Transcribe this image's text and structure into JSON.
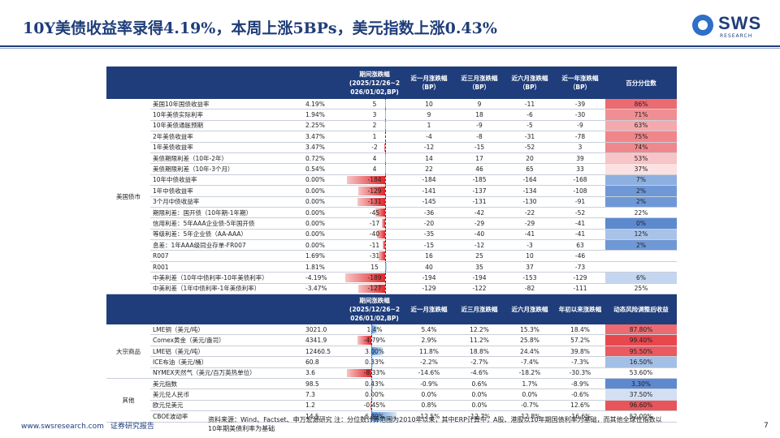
{
  "title": "10Y美债收益率录得4.19%，本周上涨5BPs，美元指数上涨0.43%",
  "logo": {
    "text": "SWS",
    "sub": "RESEARCH"
  },
  "bond_section": {
    "headers": [
      "期间涨跌幅\n(2025/12/26~2\n026/01/02,BP)",
      "近一月涨跌幅\n（BP）",
      "近三月涨跌幅\n（BP）",
      "近六月涨跌幅\n（BP）",
      "近一年涨跌幅\n（BP）",
      "百分分位数"
    ],
    "group_label": "美国债市",
    "rows": [
      {
        "name": "美国10年国债收益率",
        "level": "4.19%",
        "chg": "5",
        "m1": "10",
        "m3": "9",
        "m6": "-11",
        "y1": "-39",
        "pct": "86%",
        "pct_color": "#ec6b71",
        "bar": 5
      },
      {
        "name": "10年美债实际利率",
        "level": "1.94%",
        "chg": "3",
        "m1": "9",
        "m3": "18",
        "m6": "-6",
        "y1": "-30",
        "pct": "71%",
        "pct_color": "#f08f93",
        "bar": 3
      },
      {
        "name": "10年美债通胀预期",
        "level": "2.25%",
        "chg": "2",
        "m1": "1",
        "m3": "-9",
        "m6": "-5",
        "y1": "-9",
        "pct": "63%",
        "pct_color": "#f4aaad",
        "bar": 2
      },
      {
        "name": "2年美债收益率",
        "level": "3.47%",
        "chg": "1",
        "m1": "-4",
        "m3": "-8",
        "m6": "-31",
        "y1": "-78",
        "pct": "75%",
        "pct_color": "#ef868a",
        "bar": 1
      },
      {
        "name": "1年美债收益率",
        "level": "3.47%",
        "chg": "-2",
        "m1": "-12",
        "m3": "-15",
        "m6": "-52",
        "y1": "3",
        "pct": "74%",
        "pct_color": "#ef888c",
        "bar": -2
      },
      {
        "name": "美债期限利差（10年-2年）",
        "level": "0.72%",
        "chg": "4",
        "m1": "14",
        "m3": "17",
        "m6": "20",
        "y1": "39",
        "pct": "53%",
        "pct_color": "#f7c5c7",
        "bar": 4
      },
      {
        "name": "美债期限利差（10年-3个月）",
        "level": "0.54%",
        "chg": "4",
        "m1": "22",
        "m3": "46",
        "m6": "65",
        "y1": "33",
        "pct": "37%",
        "pct_color": "#fbe1e2",
        "bar": 4
      },
      {
        "name": "10年中债收益率",
        "level": "0.00%",
        "chg": "-184",
        "m1": "-184",
        "m3": "-185",
        "m6": "-164",
        "y1": "-168",
        "pct": "7%",
        "pct_color": "#8eb0e0",
        "bar": -184
      },
      {
        "name": "1年中债收益率",
        "level": "0.00%",
        "chg": "-129",
        "m1": "-141",
        "m3": "-137",
        "m6": "-134",
        "y1": "-108",
        "pct": "2%",
        "pct_color": "#6f98d6",
        "bar": -129
      },
      {
        "name": "3个月中债收益率",
        "level": "0.00%",
        "chg": "-131",
        "m1": "-145",
        "m3": "-131",
        "m6": "-130",
        "y1": "-91",
        "pct": "2%",
        "pct_color": "#6f98d6",
        "bar": -131
      },
      {
        "name": "期限利差：国开债（10年期-1年期）",
        "level": "0.00%",
        "chg": "-45",
        "m1": "-36",
        "m3": "-42",
        "m6": "-22",
        "y1": "-52",
        "pct": "22%",
        "pct_color": "#ffffff",
        "bar": -45
      },
      {
        "name": "信用利差：5年AAA企业债-5年国开债",
        "level": "0.00%",
        "chg": "-17",
        "m1": "-20",
        "m3": "-29",
        "m6": "-29",
        "y1": "-41",
        "pct": "0%",
        "pct_color": "#5d89cf",
        "bar": -17
      },
      {
        "name": "等级利差：5年企业债（AA-AAA）",
        "level": "0.00%",
        "chg": "-40",
        "m1": "-35",
        "m3": "-40",
        "m6": "-41",
        "y1": "-41",
        "pct": "12%",
        "pct_color": "#a9c3e8",
        "bar": -40
      },
      {
        "name": "息差：1年AAA级同业存单-FR007",
        "level": "0.00%",
        "chg": "-11",
        "m1": "-15",
        "m3": "-12",
        "m6": "-3",
        "y1": "63",
        "pct": "2%",
        "pct_color": "#6f98d6",
        "bar": -11
      },
      {
        "name": "R007",
        "level": "1.69%",
        "chg": "-31",
        "m1": "16",
        "m3": "25",
        "m6": "10",
        "y1": "-46",
        "pct": "",
        "pct_color": "#ffffff",
        "bar": -31
      },
      {
        "name": "R001",
        "level": "1.81%",
        "chg": "15",
        "m1": "40",
        "m3": "35",
        "m6": "37",
        "y1": "-73",
        "pct": "",
        "pct_color": "#ffffff",
        "bar": 15
      },
      {
        "name": "中美利差（10年中债利率-10年美债利率）",
        "level": "-4.19%",
        "chg": "-189",
        "m1": "-194",
        "m3": "-194",
        "m6": "-153",
        "y1": "-129",
        "pct": "6%",
        "pct_color": "#c4d6ef",
        "bar": -189
      },
      {
        "name": "中美利差（1年中债利率-1年美债利率）",
        "level": "-3.47%",
        "chg": "-127",
        "m1": "-129",
        "m3": "-122",
        "m6": "-82",
        "y1": "-111",
        "pct": "25%",
        "pct_color": "#ffffff",
        "bar": -127
      }
    ]
  },
  "commodity_section": {
    "headers": [
      "期间涨跌幅\n(2025/12/26~2\n026/01/02,BP)",
      "近一月涨跌幅",
      "近三月涨跌幅",
      "近六月涨跌幅",
      "年初以来涨跌幅",
      "动态风险调整后收益"
    ],
    "groups": [
      {
        "label": "大宗商品",
        "rows": [
          {
            "name": "LME铜（美元/吨）",
            "level": "3021.0",
            "chg": "1.4%",
            "m1": "5.4%",
            "m3": "12.2%",
            "m6": "15.3%",
            "y1": "18.4%",
            "pct": "87.80%",
            "pct_color": "#ec6b71",
            "bar": 1.4
          },
          {
            "name": "Comex黄金（美元/盎司）",
            "level": "4341.9",
            "chg": "-4.79%",
            "m1": "2.9%",
            "m3": "11.2%",
            "m6": "25.8%",
            "y1": "57.2%",
            "pct": "99.40%",
            "pct_color": "#e8474d",
            "bar": -4.79
          },
          {
            "name": "LME铝（美元/吨）",
            "level": "12460.5",
            "chg": "3.00%",
            "m1": "11.8%",
            "m3": "18.8%",
            "m6": "24.4%",
            "y1": "39.8%",
            "pct": "95.50%",
            "pct_color": "#ea5a60",
            "bar": 3.0
          },
          {
            "name": "ICE布油（美元/桶）",
            "level": "60.8",
            "chg": "0.33%",
            "m1": "-2.2%",
            "m3": "-2.7%",
            "m6": "-7.4%",
            "y1": "-7.3%",
            "pct": "16.50%",
            "pct_color": "#a3bfe6",
            "bar": 0.33
          },
          {
            "name": "NYMEX天然气（美元/百万英热单位）",
            "level": "3.6",
            "chg": "-8.33%",
            "m1": "-14.6%",
            "m3": "-4.6%",
            "m6": "-18.2%",
            "y1": "-30.3%",
            "pct": "53.60%",
            "pct_color": "#ffffff",
            "bar": -8.33
          }
        ]
      },
      {
        "label": "其他",
        "rows": [
          {
            "name": "美元指数",
            "level": "98.5",
            "chg": "0.43%",
            "m1": "-0.9%",
            "m3": "0.6%",
            "m6": "1.7%",
            "y1": "-8.9%",
            "pct": "3.30%",
            "pct_color": "#5d89cf",
            "bar": 0.43
          },
          {
            "name": "美元兑人民币",
            "level": "7.3",
            "chg": "0.00%",
            "m1": "0.0%",
            "m3": "0.0%",
            "m6": "0.0%",
            "y1": "-0.6%",
            "pct": "37.50%",
            "pct_color": "#d3e0f3",
            "bar": 0
          },
          {
            "name": "欧元兑美元",
            "level": "1.2",
            "chg": "-0.45%",
            "m1": "0.8%",
            "m3": "0.0%",
            "m6": "-0.7%",
            "y1": "12.6%",
            "pct": "96.60%",
            "pct_color": "#e9545a",
            "bar": -0.45
          },
          {
            "name": "CBOE波动率",
            "level": "14.5",
            "chg": "6.89%",
            "m1": "-12.5%",
            "m3": "-12.7%",
            "m6": "-12.8%",
            "y1": "-16.6%",
            "pct": "52.00%",
            "pct_color": "#ffffff",
            "bar": 6.89
          }
        ]
      }
    ]
  },
  "footer": {
    "website": "www.swsresearch.com",
    "label": "证券研究报告",
    "source": "资料来源：Wind、Factset、申万宏源研究 注：分位数计算范围为2010年以来，其中ERP计算中，A股、港股以10年期国债利率为基础，而其他全球性指数以10年期美债利率为基础",
    "page": "7"
  }
}
